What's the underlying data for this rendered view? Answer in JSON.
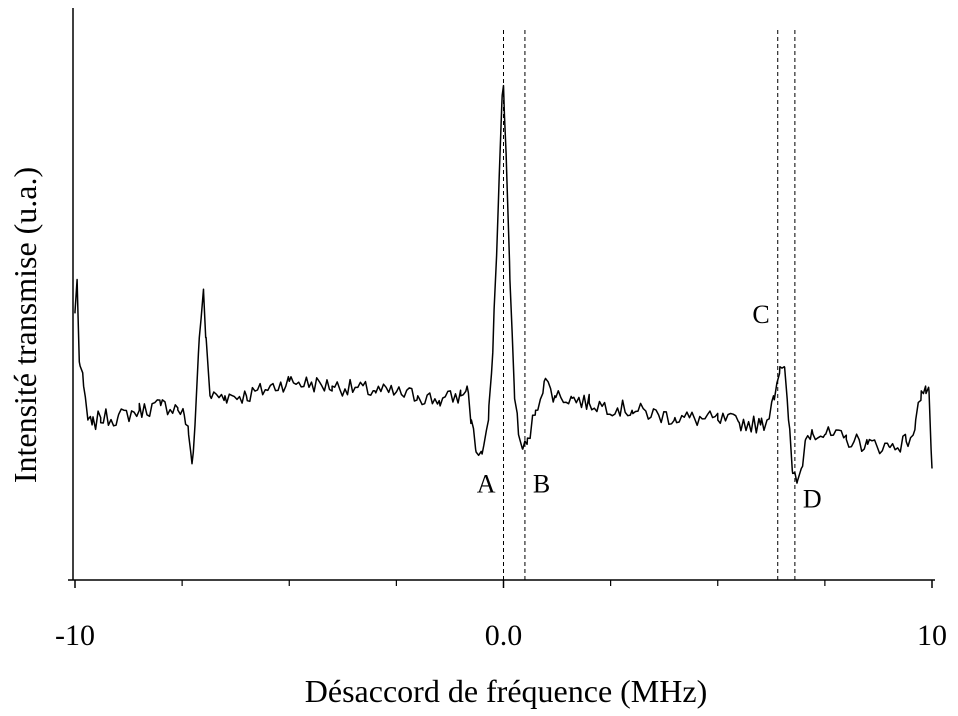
{
  "chart_data": {
    "type": "line",
    "xlabel": "Désaccord de fréquence (MHz)",
    "ylabel": "Intensité transmise (u.a.)",
    "xlim": [
      -10,
      10
    ],
    "ylim": [
      0,
      1.18
    ],
    "x_tick_labels": [
      {
        "x": -10,
        "label": "-10"
      },
      {
        "x": 0,
        "label": "0.0"
      },
      {
        "x": 10,
        "label": "10"
      }
    ],
    "x_minor_ticks": [
      -7.5,
      -5,
      -2.5,
      2.5,
      5,
      7.5
    ],
    "y_ticks": false,
    "grid": false,
    "color": "#000000",
    "markers": [
      {
        "label": "A",
        "x": 0.0,
        "label_side": "left",
        "label_level": 0.18
      },
      {
        "label": "B",
        "x": 0.5,
        "label_side": "right",
        "label_level": 0.18
      },
      {
        "label": "C",
        "x": 6.4,
        "label_side": "left",
        "label_level": 0.53
      },
      {
        "label": "D",
        "x": 6.8,
        "label_side": "right",
        "label_level": 0.15
      }
    ],
    "series": [
      {
        "anchors": [
          [
            -10,
            0.55
          ],
          [
            -9.95,
            0.62
          ],
          [
            -9.9,
            0.45
          ],
          [
            -9.8,
            0.4
          ],
          [
            -9.7,
            0.33
          ],
          [
            -9.6,
            0.32
          ],
          [
            -9.4,
            0.335
          ],
          [
            -9,
            0.335
          ],
          [
            -8.5,
            0.35
          ],
          [
            -8,
            0.36
          ],
          [
            -7.6,
            0.355
          ],
          [
            -7.45,
            0.34
          ],
          [
            -7.35,
            0.3
          ],
          [
            -7.27,
            0.24
          ],
          [
            -7.2,
            0.32
          ],
          [
            -7.1,
            0.5
          ],
          [
            -7.0,
            0.6
          ],
          [
            -6.95,
            0.5
          ],
          [
            -6.85,
            0.38
          ],
          [
            -6.5,
            0.38
          ],
          [
            -6,
            0.38
          ],
          [
            -5,
            0.41
          ],
          [
            -4,
            0.4
          ],
          [
            -3,
            0.39
          ],
          [
            -2,
            0.38
          ],
          [
            -1.5,
            0.37
          ],
          [
            -1.0,
            0.38
          ],
          [
            -0.85,
            0.4
          ],
          [
            -0.75,
            0.33
          ],
          [
            -0.65,
            0.27
          ],
          [
            -0.5,
            0.26
          ],
          [
            -0.35,
            0.33
          ],
          [
            -0.25,
            0.47
          ],
          [
            -0.12,
            0.78
          ],
          [
            -0.03,
            1.0
          ],
          [
            0.0,
            1.02
          ],
          [
            0.06,
            0.88
          ],
          [
            0.15,
            0.62
          ],
          [
            0.25,
            0.4
          ],
          [
            0.35,
            0.3
          ],
          [
            0.45,
            0.27
          ],
          [
            0.55,
            0.28
          ],
          [
            0.75,
            0.35
          ],
          [
            0.95,
            0.41
          ],
          [
            1.2,
            0.38
          ],
          [
            1.6,
            0.375
          ],
          [
            2,
            0.365
          ],
          [
            3,
            0.35
          ],
          [
            4,
            0.335
          ],
          [
            5,
            0.33
          ],
          [
            5.5,
            0.325
          ],
          [
            6.0,
            0.32
          ],
          [
            6.15,
            0.33
          ],
          [
            6.3,
            0.38
          ],
          [
            6.45,
            0.44
          ],
          [
            6.55,
            0.44
          ],
          [
            6.65,
            0.33
          ],
          [
            6.75,
            0.22
          ],
          [
            6.85,
            0.2
          ],
          [
            6.95,
            0.23
          ],
          [
            7.05,
            0.29
          ],
          [
            7.2,
            0.31
          ],
          [
            7.5,
            0.3
          ],
          [
            8,
            0.29
          ],
          [
            8.5,
            0.28
          ],
          [
            9,
            0.275
          ],
          [
            9.4,
            0.285
          ],
          [
            9.6,
            0.31
          ],
          [
            9.75,
            0.39
          ],
          [
            9.85,
            0.4
          ],
          [
            9.93,
            0.39
          ],
          [
            10,
            0.23
          ]
        ],
        "noise_amplitude": 0.018
      }
    ]
  }
}
